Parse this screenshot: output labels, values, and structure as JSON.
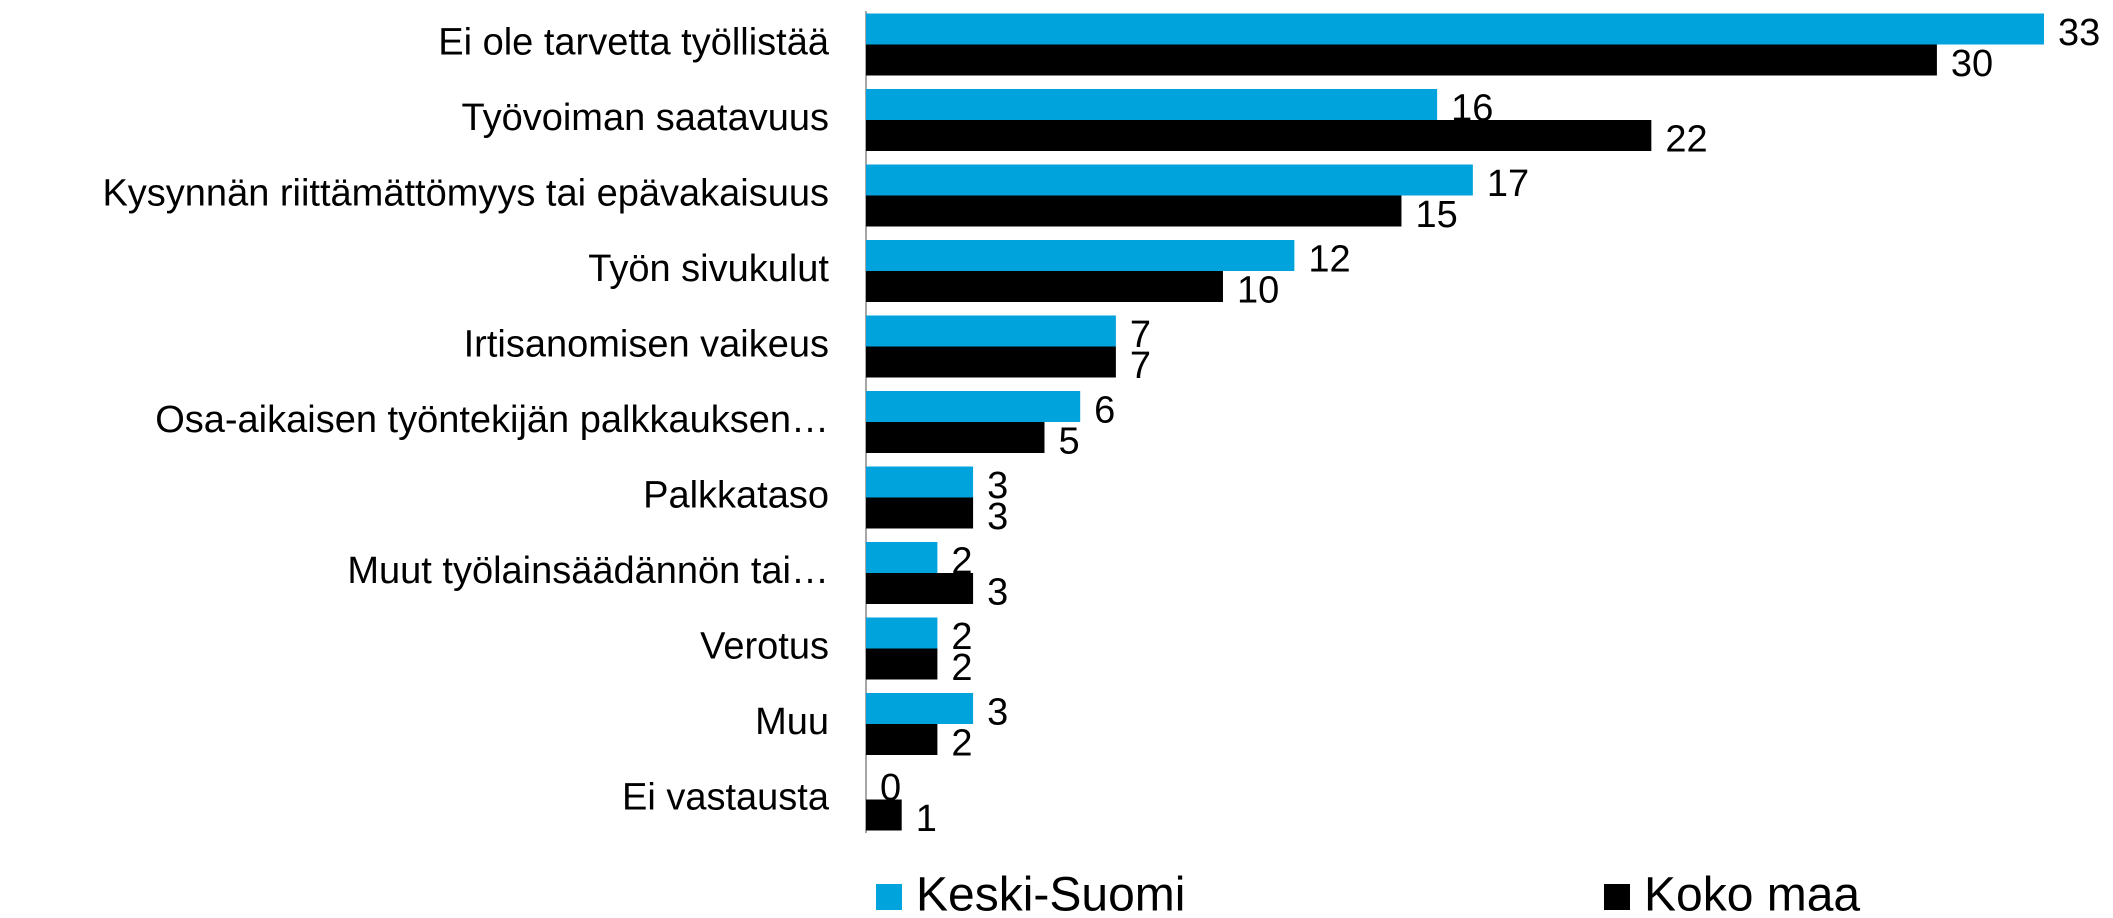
{
  "chart_data": {
    "type": "bar",
    "orientation": "horizontal",
    "categories": [
      "Ei ole tarvetta työllistää",
      "Työvoiman saatavuus",
      "Kysynnän riittämättömyys tai epävakaisuus",
      "Työn sivukulut",
      "Irtisanomisen vaikeus",
      "Osa-aikaisen työntekijän palkkauksen…",
      "Palkkataso",
      "Muut työlainsäädännön tai…",
      "Verotus",
      "Muu",
      "Ei vastausta"
    ],
    "series": [
      {
        "name": "Keski-Suomi",
        "color": "#00a3dc",
        "values": [
          33,
          16,
          17,
          12,
          7,
          6,
          3,
          2,
          2,
          3,
          0
        ]
      },
      {
        "name": "Koko maa",
        "color": "#000000",
        "values": [
          30,
          22,
          15,
          10,
          7,
          5,
          3,
          3,
          2,
          2,
          1
        ]
      }
    ],
    "legend": "bottom"
  }
}
